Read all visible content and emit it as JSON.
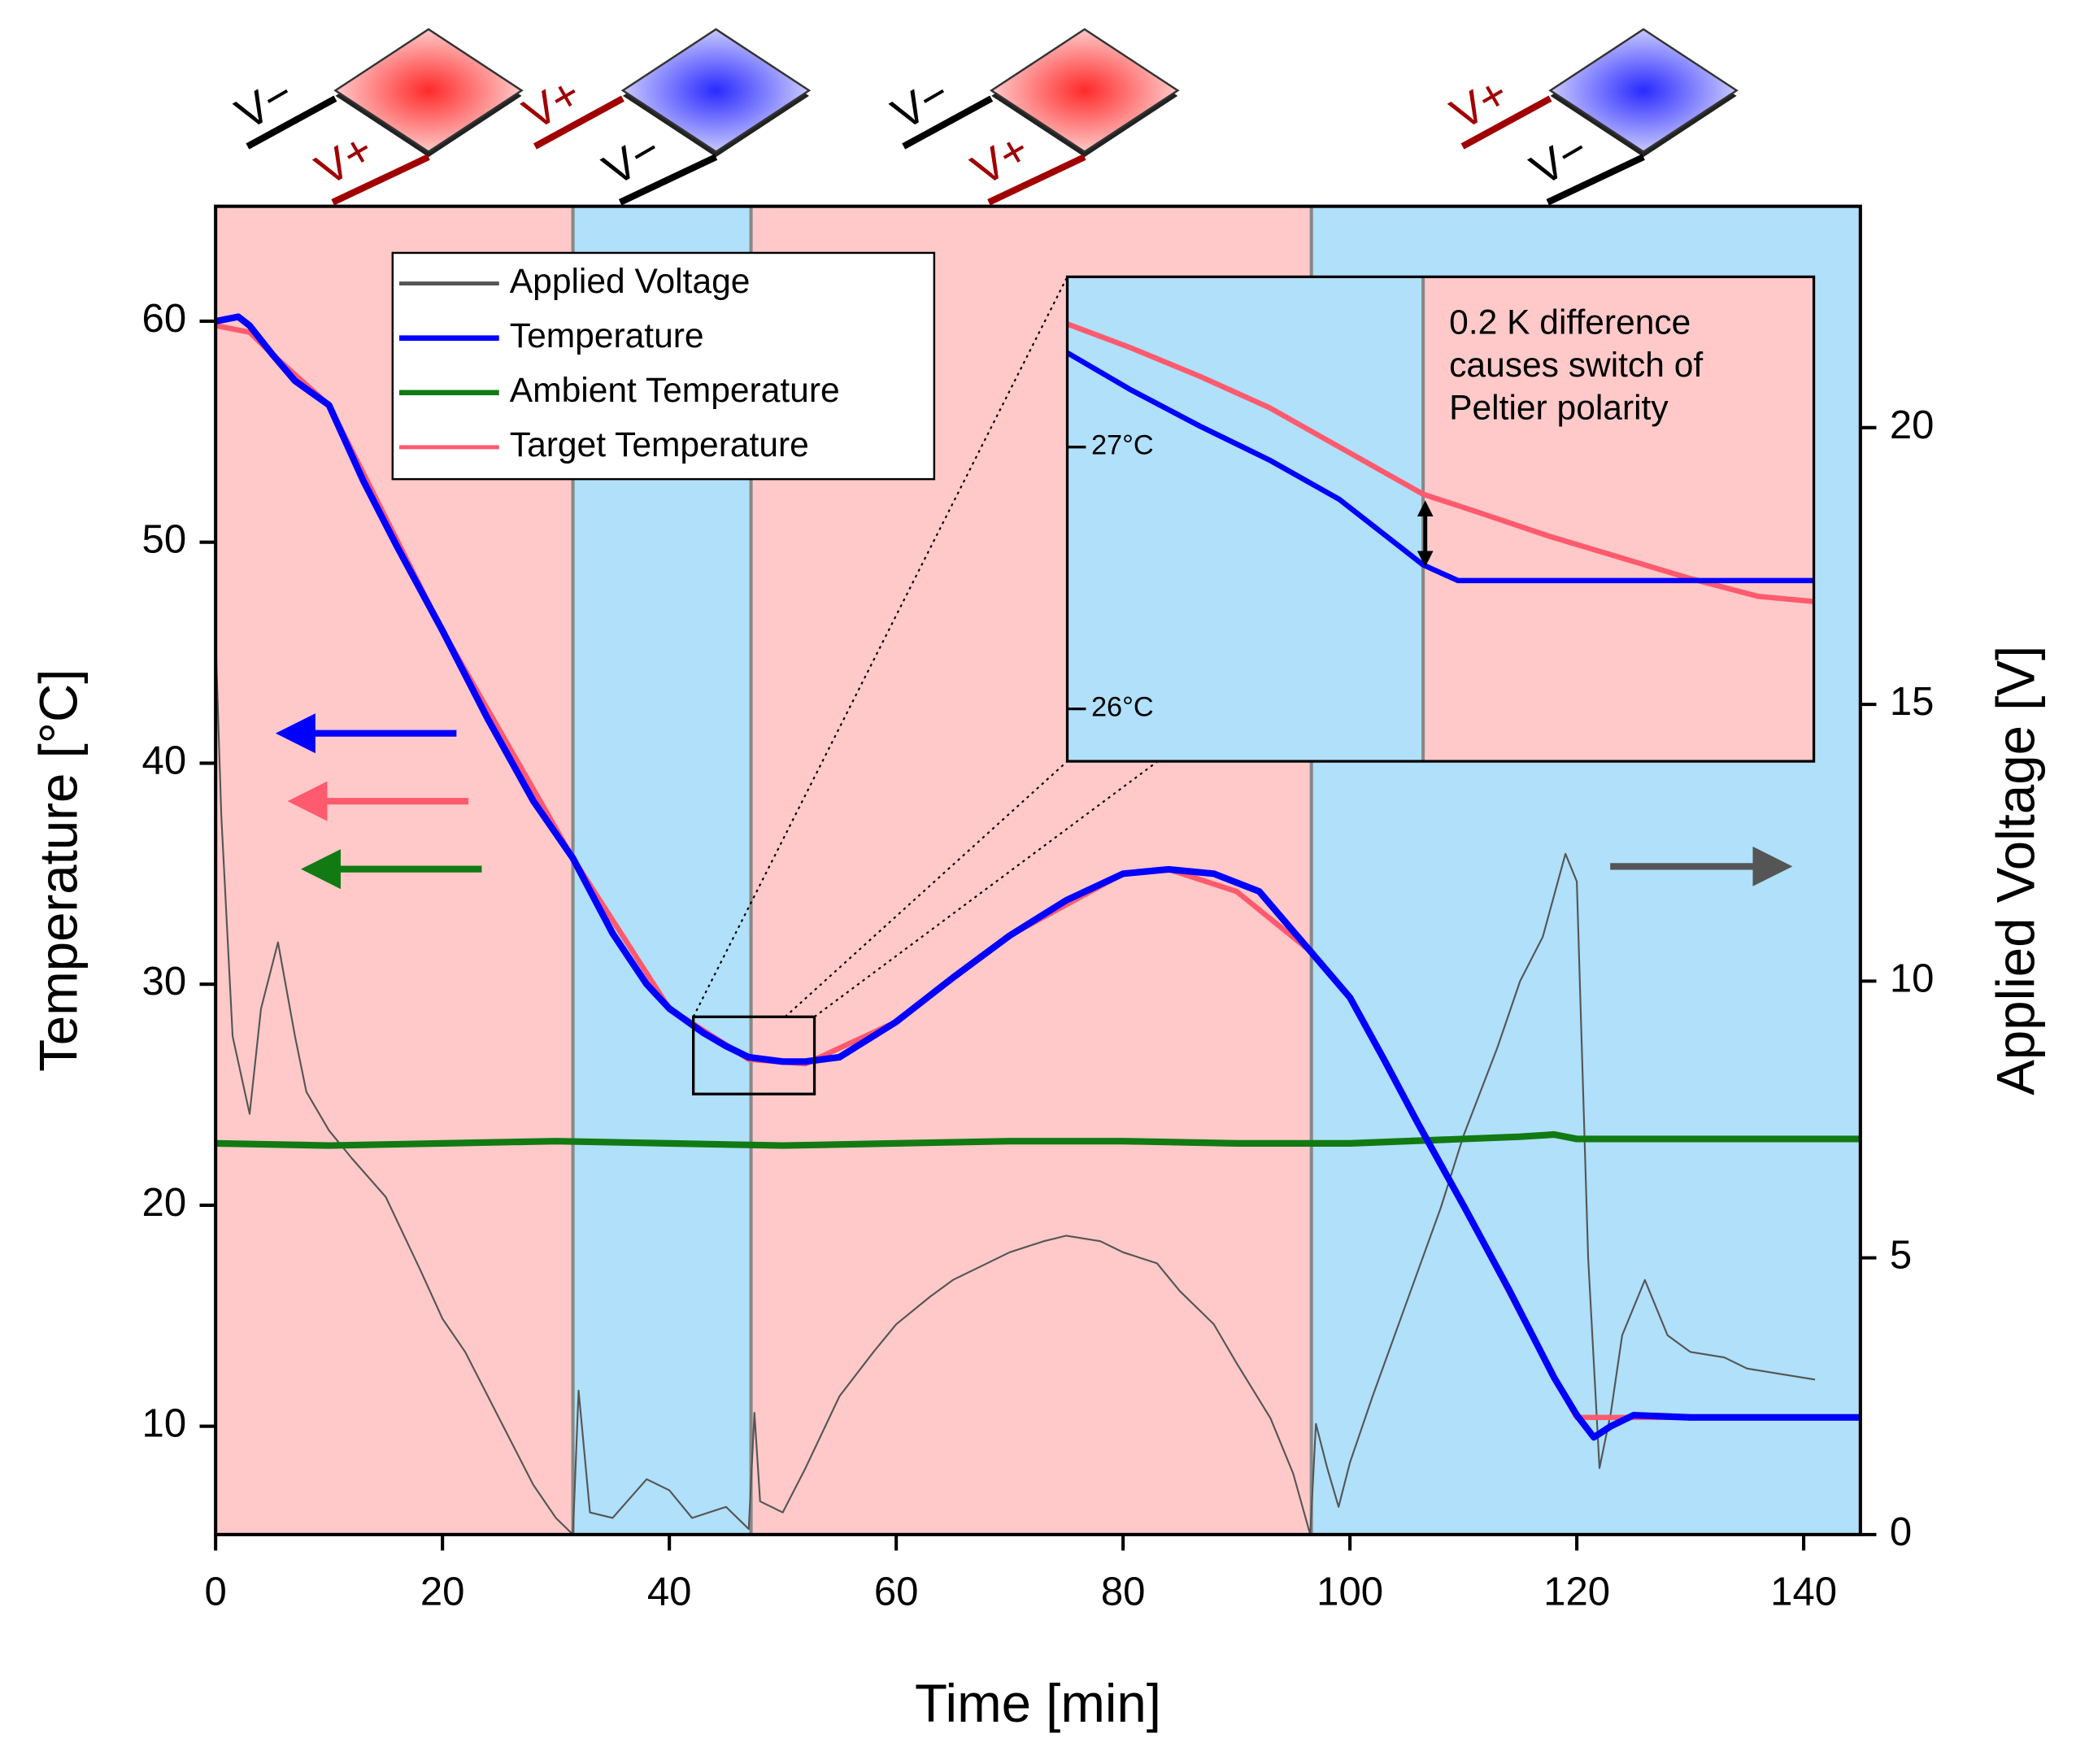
{
  "chart_data": [
    {
      "type": "line",
      "xlabel": "Time [min]",
      "ylabel": "Temperature [°C]",
      "y2label": "Applied Voltage [V]",
      "xlim": [
        0,
        145
      ],
      "xticks": [
        0,
        20,
        40,
        60,
        80,
        100,
        120,
        140
      ],
      "ylim": [
        5.1,
        65.2
      ],
      "yticks": [
        10,
        20,
        30,
        40,
        50,
        60
      ],
      "y2lim": [
        0,
        24
      ],
      "y2ticks": [
        0,
        5,
        10,
        15,
        20
      ],
      "legend": "top-left",
      "regions": [
        {
          "start": 0,
          "end": 31.5,
          "color": "#ffc9c9"
        },
        {
          "start": 31.5,
          "end": 47.2,
          "color": "#b0e0fa"
        },
        {
          "start": 47.2,
          "end": 96.6,
          "color": "#ffc9c9"
        },
        {
          "start": 96.6,
          "end": 145,
          "color": "#b0e0fa"
        }
      ],
      "series": [
        {
          "name": "Applied Voltage",
          "color": "#555555",
          "width": 1.3,
          "axis": "y2",
          "x": [
            0,
            0.5,
            1.5,
            3,
            4,
            5.5,
            7,
            8,
            10,
            12,
            15,
            18,
            20,
            22,
            25,
            28,
            30,
            31.5,
            32,
            33,
            35,
            38,
            40,
            42,
            45,
            47,
            47.5,
            48,
            50,
            52,
            55,
            58,
            60,
            63,
            65,
            68,
            70,
            73,
            75,
            78,
            80,
            83,
            85,
            88,
            90,
            93,
            95,
            96.5,
            97,
            98,
            99,
            100,
            102,
            105,
            108,
            110,
            113,
            115,
            117,
            119,
            120,
            121,
            122,
            123,
            124,
            126,
            128,
            130,
            133,
            135,
            138,
            141
          ],
          "values": [
            16.2,
            13,
            9,
            7.6,
            9.5,
            10.7,
            9,
            8,
            7.3,
            6.8,
            6.1,
            4.8,
            3.9,
            3.3,
            2.1,
            0.9,
            0.3,
            0,
            2.6,
            0.4,
            0.3,
            1,
            0.8,
            0.3,
            0.5,
            0.1,
            2.2,
            0.6,
            0.4,
            1.2,
            2.5,
            3.3,
            3.8,
            4.3,
            4.6,
            4.9,
            5.1,
            5.3,
            5.4,
            5.3,
            5.1,
            4.9,
            4.4,
            3.8,
            3.1,
            2.1,
            1.1,
            0,
            2,
            1.2,
            0.5,
            1.3,
            2.5,
            4.2,
            5.9,
            7.2,
            8.8,
            10,
            10.8,
            12.3,
            11.8,
            5,
            1.2,
            2.2,
            3.6,
            4.6,
            3.6,
            3.3,
            3.2,
            3.0,
            2.9,
            2.8
          ]
        },
        {
          "name": "Temperature",
          "color": "#0000ff",
          "width": 5,
          "x": [
            0,
            1,
            2,
            3,
            5,
            7,
            10,
            13,
            16,
            20,
            24,
            28,
            31.5,
            35,
            38,
            40,
            43,
            45,
            47,
            50,
            52,
            55,
            60,
            65,
            70,
            75,
            80,
            84,
            88,
            92,
            96.5,
            100,
            103,
            106,
            110,
            114,
            118,
            120,
            121.5,
            123,
            125,
            130,
            135,
            145
          ],
          "values": [
            60,
            60.1,
            60.2,
            59.8,
            58.5,
            57.3,
            56.2,
            52.8,
            49.8,
            46,
            42,
            38.3,
            35.7,
            32.3,
            30,
            28.9,
            27.8,
            27.2,
            26.7,
            26.5,
            26.5,
            26.7,
            28.3,
            30.3,
            32.2,
            33.8,
            35,
            35.2,
            35,
            34.2,
            31.5,
            29.4,
            26.6,
            23.7,
            20,
            16.2,
            12.2,
            10.5,
            9.5,
            10,
            10.5,
            10.4,
            10.4,
            10.4
          ]
        },
        {
          "name": "Ambient Temperature",
          "color": "#127a12",
          "width": 5,
          "x": [
            0,
            10,
            20,
            30,
            40,
            50,
            60,
            70,
            80,
            90,
            100,
            110,
            115,
            118,
            120,
            122,
            145
          ],
          "values": [
            22.8,
            22.7,
            22.8,
            22.9,
            22.8,
            22.7,
            22.8,
            22.9,
            22.9,
            22.8,
            22.8,
            23,
            23.1,
            23.2,
            23,
            23,
            23
          ]
        },
        {
          "name": "Target Temperature",
          "color": "#ff5a6e",
          "width": 4,
          "x": [
            0,
            3,
            5,
            10,
            20,
            31.5,
            40,
            47,
            52,
            60,
            70,
            80,
            84,
            90,
            96.5,
            100,
            110,
            118,
            120,
            145
          ],
          "values": [
            59.8,
            59.5,
            58.5,
            56.2,
            46,
            35.7,
            28.9,
            26.6,
            26.4,
            28.3,
            32.2,
            35,
            35.2,
            34.2,
            31.5,
            29.4,
            20,
            12.2,
            10.4,
            10.4
          ]
        }
      ]
    },
    {
      "type": "line",
      "xlim": [
        42.1,
        52.8
      ],
      "ylim": [
        25.8,
        27.65
      ],
      "yticks": [
        {
          "value": 26,
          "label": "26°C"
        },
        {
          "value": 27,
          "label": "27°C"
        }
      ],
      "annotation": [
        "0.2 K difference",
        "causes switch of",
        "Peltier polarity"
      ],
      "regions": [
        {
          "start": 42.1,
          "end": 47.2,
          "color": "#b0e0fa"
        },
        {
          "start": 47.2,
          "end": 52.8,
          "color": "#ffc9c9"
        }
      ],
      "series": [
        {
          "color": "#ff5a6e",
          "width": 4,
          "x": [
            42.1,
            43,
            44,
            45,
            46,
            47.2,
            48,
            49,
            50,
            51,
            52,
            52.8
          ],
          "values": [
            27.47,
            27.38,
            27.27,
            27.15,
            27.0,
            26.82,
            26.75,
            26.66,
            26.58,
            26.5,
            26.43,
            26.41
          ]
        },
        {
          "color": "#0000ff",
          "width": 4,
          "x": [
            42.1,
            43,
            44,
            45,
            46,
            47.2,
            47.7,
            48,
            50,
            52,
            52.8
          ],
          "values": [
            27.36,
            27.22,
            27.08,
            26.95,
            26.8,
            26.55,
            26.49,
            26.49,
            26.49,
            26.49,
            26.49
          ]
        }
      ]
    }
  ],
  "peltier_icons": [
    {
      "top": "V−",
      "bottom": "V+"
    },
    {
      "top": "V+",
      "bottom": "V−"
    },
    {
      "top": "V−",
      "bottom": "V+"
    },
    {
      "top": "V+",
      "bottom": "V−"
    }
  ]
}
